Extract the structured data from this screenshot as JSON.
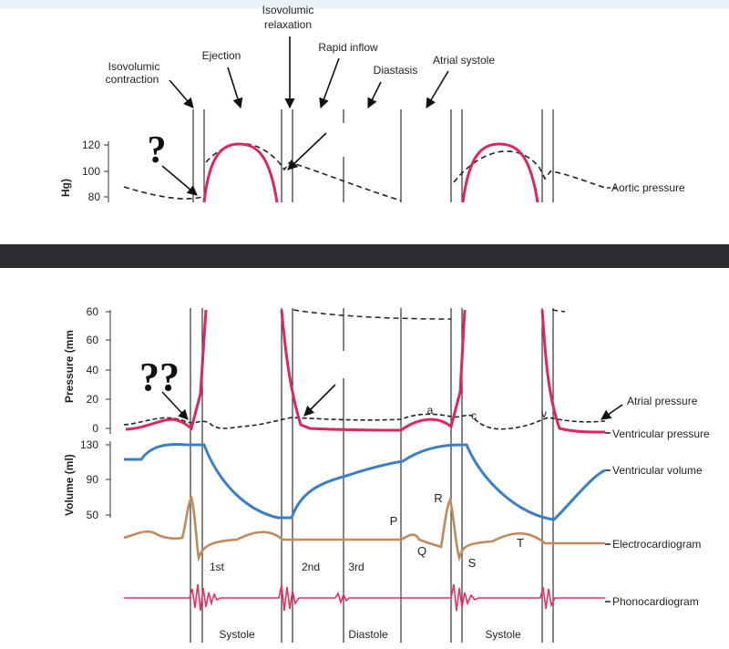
{
  "colors": {
    "top_bar": "#e9f2f6",
    "separator": "#2b2d30",
    "pressure_red": "#e0245e",
    "volume_blue": "#3a7fc8",
    "ecg_brown": "#c08a5a",
    "phono_red": "#ec2f5f",
    "dashed": "#222222"
  },
  "top": {
    "phase_labels": {
      "isovolumic_contraction_1": "Isovolumic",
      "isovolumic_contraction_2": "contraction",
      "ejection": "Ejection",
      "isovolumic_relaxation_1": "Isovolumic",
      "isovolumic_relaxation_2": "relaxation",
      "rapid_inflow": "Rapid inflow",
      "diastasis": "Diastasis",
      "atrial_systole": "Atrial systole"
    },
    "question_mark": "?",
    "y_axis_label": "Hg)",
    "ticks": [
      "120",
      "100",
      "80"
    ],
    "aortic_pressure_label": "Aortic pressure"
  },
  "bottom": {
    "question_marks": "??",
    "pressure_axis_label": "Pressure (mm",
    "pressure_ticks": [
      "60",
      "60",
      "40",
      "20",
      "0"
    ],
    "volume_axis_label": "Volume (ml)",
    "volume_ticks": [
      "130",
      "90",
      "50"
    ],
    "labels": {
      "atrial_pressure": "Atrial pressure",
      "ventricular_pressure": "Ventricular pressure",
      "ventricular_volume": "Ventricular volume",
      "electrocardiogram": "Electrocardiogram",
      "phonocardiogram": "Phonocardiogram"
    },
    "waves": {
      "a": "a",
      "c": "c",
      "v": "v"
    },
    "ecg_waves": {
      "P": "P",
      "Q": "Q",
      "R": "R",
      "S": "S",
      "T": "T"
    },
    "heart_sounds": {
      "first": "1st",
      "second": "2nd",
      "third": "3rd"
    },
    "phases": {
      "systole_1": "Systole",
      "diastole": "Diastole",
      "systole_2": "Systole"
    }
  }
}
